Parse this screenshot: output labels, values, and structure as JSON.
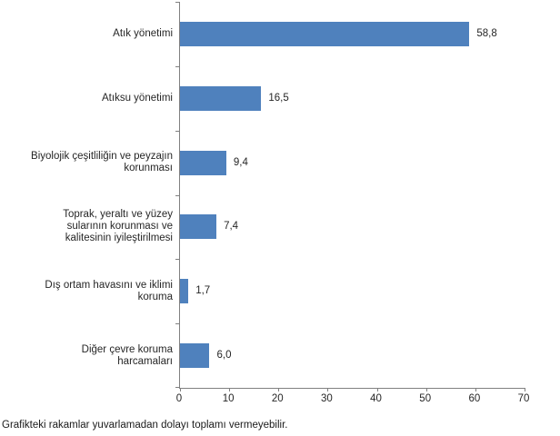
{
  "footer_note": "Grafikteki rakamlar yuvarlamadan dolayı toplamı vermeyebilir.",
  "colors": {
    "bar": "#4f81bd",
    "axis": "#808080",
    "text": "#262626"
  },
  "chart_data": {
    "type": "bar",
    "orientation": "horizontal",
    "title": "",
    "xlabel": "",
    "ylabel": "",
    "grid": false,
    "legend": false,
    "xlim": [
      0,
      70
    ],
    "x_ticks": [
      "0",
      "10",
      "20",
      "30",
      "40",
      "50",
      "60",
      "70"
    ],
    "categories": [
      "Atık yönetimi",
      "Atıksu yönetimi",
      "Biyolojik çeşitliliğin ve peyzajın korunması",
      "Toprak, yeraltı ve yüzey sularının korunması ve kalitesinin iyileştirilmesi",
      "Dış ortam havasını ve iklimi koruma",
      "Diğer çevre koruma harcamaları"
    ],
    "category_label_lines": [
      [
        "Atık yönetimi"
      ],
      [
        "Atıksu yönetimi"
      ],
      [
        "Biyolojik çeşitliliğin ve peyzajın",
        "korunması"
      ],
      [
        "Toprak, yeraltı ve yüzey",
        "sularının korunması ve",
        "kalitesinin iyileştirilmesi"
      ],
      [
        "Dış ortam havasını ve iklimi",
        "koruma"
      ],
      [
        "Diğer çevre koruma",
        "harcamaları"
      ]
    ],
    "values": [
      58.8,
      16.5,
      9.4,
      7.4,
      1.7,
      6.0
    ],
    "value_labels": [
      "58,8",
      "16,5",
      "9,4",
      "7,4",
      "1,7",
      "6,0"
    ]
  }
}
